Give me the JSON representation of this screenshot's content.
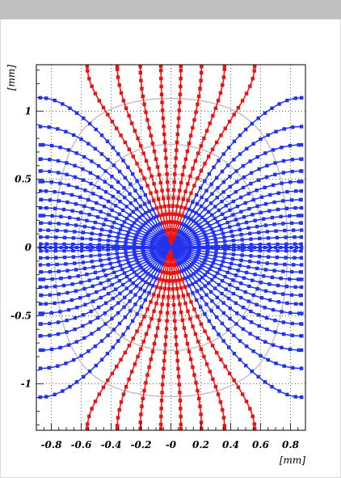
{
  "chart_data": {
    "type": "line",
    "title": "",
    "xlabel": "[mm]",
    "ylabel": "[mm]",
    "xlim": [
      -0.9,
      0.9
    ],
    "ylim": [
      -1.34,
      1.34
    ],
    "xticks": [
      -0.8,
      -0.6,
      -0.4,
      -0.2,
      0,
      0.2,
      0.4,
      0.6,
      0.8
    ],
    "xtick_labels": [
      "-0.8",
      "-0.6",
      "-0.4",
      "-0.2",
      "-0",
      "0.2",
      "0.4",
      "0.6",
      "0.8"
    ],
    "yticks": [
      -1,
      -0.5,
      0,
      0.5,
      1
    ],
    "ytick_labels": [
      "-1",
      "-0.5",
      "0",
      "0.5",
      "1"
    ],
    "grid": true,
    "colors": {
      "drift_lines": "#ee1111",
      "boundary_lines": "#2233ee",
      "equipotentials": "#c4c4c4",
      "frame": "#000000",
      "titlebar": "#c0c0c0"
    },
    "wire": {
      "x": 0,
      "y": 0
    },
    "cell_half_width": 0.875,
    "cell_half_height": 1.33,
    "n_drift_lines": 72,
    "equipotential_radii": [
      0.07,
      0.12,
      0.18,
      0.26,
      0.36,
      0.48,
      0.62,
      0.78,
      0.96
    ]
  }
}
